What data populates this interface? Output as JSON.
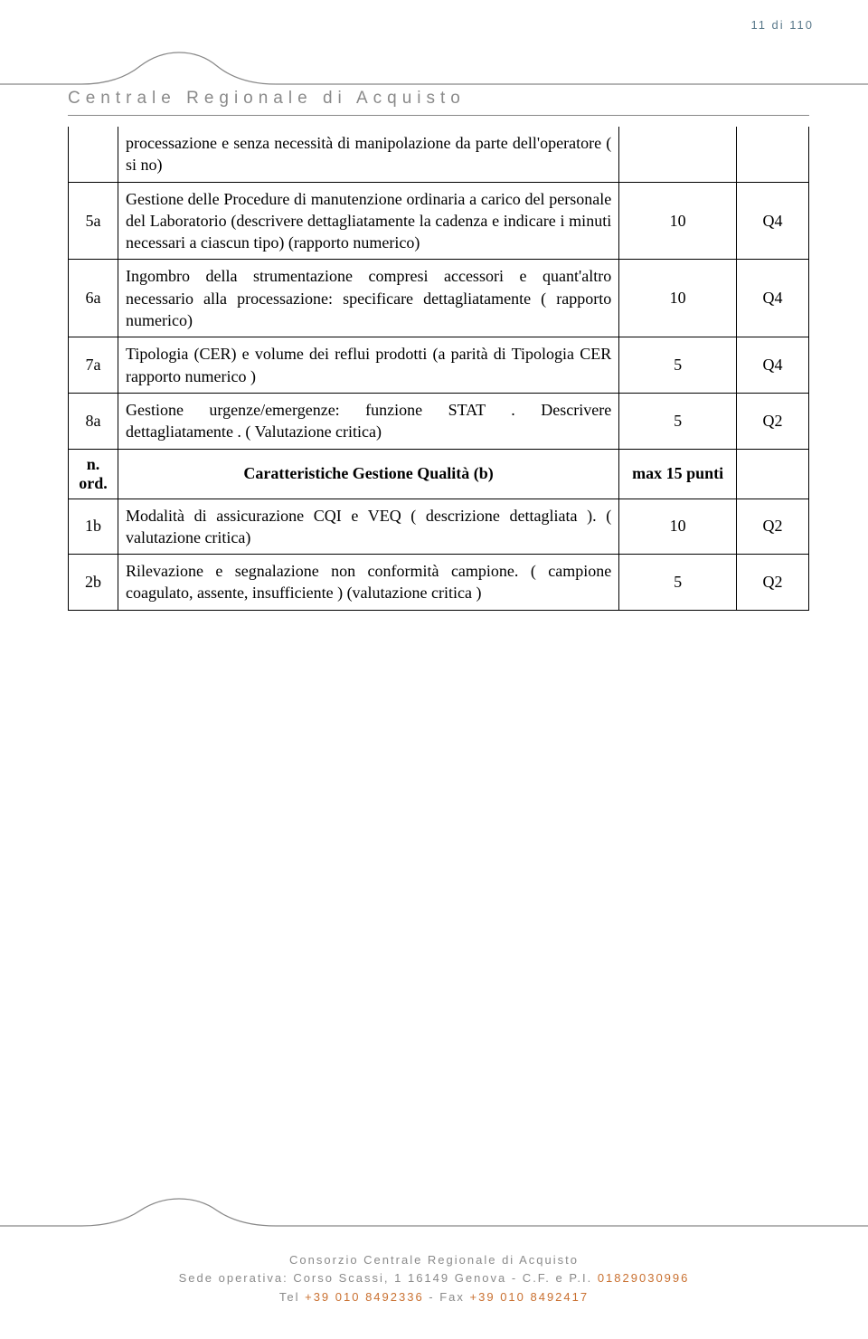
{
  "pageNumber": "11 di 110",
  "headerTitle": "Centrale Regionale di Acquisto",
  "curve": {
    "stroke": "#888888",
    "width": 1
  },
  "table": {
    "rows": [
      {
        "ord": "",
        "desc": "processazione e senza necessità di manipolazione da parte dell'operatore ( si no)",
        "pts": "",
        "q": "",
        "continueTop": true
      },
      {
        "ord": "5a",
        "desc": "Gestione delle Procedure di manutenzione ordinaria a carico del personale del Laboratorio (descrivere dettagliatamente la cadenza e indicare i minuti necessari a ciascun tipo) (rapporto numerico)",
        "pts": "10",
        "q": "Q4"
      },
      {
        "ord": "6a",
        "desc": "Ingombro della strumentazione compresi accessori e quant'altro necessario alla processazione: specificare dettagliatamente ( rapporto numerico)",
        "pts": "10",
        "q": "Q4"
      },
      {
        "ord": "7a",
        "desc": "Tipologia (CER) e volume dei reflui prodotti (a parità di Tipologia CER rapporto numerico )",
        "pts": "5",
        "q": "Q4"
      },
      {
        "ord": "8a",
        "desc": "Gestione urgenze/emergenze: funzione STAT . Descrivere dettagliatamente . ( Valutazione critica)",
        "pts": "5",
        "q": "Q2"
      },
      {
        "ord": "n. ord.",
        "desc": "Caratteristiche Gestione Qualità (b)",
        "pts": "max 15 punti",
        "q": "",
        "header": true
      },
      {
        "ord": "1b",
        "desc": "Modalità di assicurazione CQI e VEQ ( descrizione dettagliata ). ( valutazione critica)",
        "pts": "10",
        "q": "Q2"
      },
      {
        "ord": "2b",
        "desc": "Rilevazione e segnalazione non conformità campione. ( campione coagulato, assente, insufficiente ) (valutazione critica )",
        "pts": "5",
        "q": "Q2"
      }
    ]
  },
  "footer": {
    "line1a": "Consorzio Centrale Regionale di Acquisto",
    "line2a": "Sede operativa: Corso Scassi, 1 16149 Genova - C.F. e P.I. ",
    "line2b": "01829030996",
    "line3a": "Tel ",
    "line3b": "+39 010 8492336",
    "line3c": " - Fax ",
    "line3d": "+39 010 8492417"
  }
}
